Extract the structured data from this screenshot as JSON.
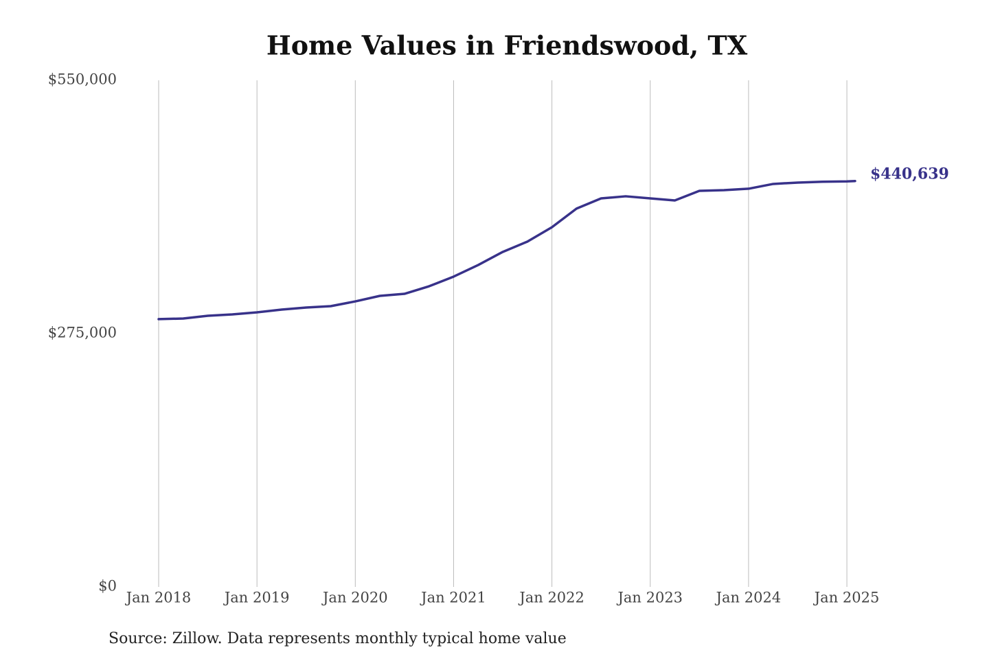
{
  "chart_data": {
    "type": "line",
    "title": "Home Values in Friendswood, TX",
    "note": "Source: Zillow. Data represents monthly typical home value",
    "x": [
      "2018-01",
      "2018-04",
      "2018-07",
      "2018-10",
      "2019-01",
      "2019-04",
      "2019-07",
      "2019-10",
      "2020-01",
      "2020-04",
      "2020-07",
      "2020-10",
      "2021-01",
      "2021-04",
      "2021-07",
      "2021-10",
      "2022-01",
      "2022-04",
      "2022-07",
      "2022-10",
      "2023-01",
      "2023-04",
      "2023-07",
      "2023-10",
      "2024-01",
      "2024-04",
      "2024-07",
      "2024-10",
      "2025-01",
      "2025-02"
    ],
    "series": [
      {
        "name": "Typical home value",
        "color": "#38328a",
        "values": [
          290700,
          291400,
          294400,
          295900,
          298100,
          301100,
          303300,
          304800,
          310000,
          316000,
          318200,
          326400,
          336900,
          349500,
          363700,
          374900,
          390500,
          410700,
          421800,
          424100,
          421800,
          419600,
          430000,
          430800,
          432300,
          437500,
          439000,
          439900,
          440300,
          440639
        ],
        "value_labels": [
          null,
          null,
          null,
          null,
          null,
          null,
          null,
          null,
          null,
          null,
          null,
          null,
          null,
          null,
          null,
          null,
          null,
          null,
          null,
          null,
          null,
          null,
          null,
          null,
          null,
          null,
          null,
          null,
          null,
          "$440,639"
        ]
      }
    ],
    "xlim": [
      "2018-01",
      "2025-02"
    ],
    "xticks": [
      {
        "value": "2018-01",
        "label": "Jan 2018"
      },
      {
        "value": "2019-01",
        "label": "Jan 2019"
      },
      {
        "value": "2020-01",
        "label": "Jan 2020"
      },
      {
        "value": "2021-01",
        "label": "Jan 2021"
      },
      {
        "value": "2022-01",
        "label": "Jan 2022"
      },
      {
        "value": "2023-01",
        "label": "Jan 2023"
      },
      {
        "value": "2024-01",
        "label": "Jan 2024"
      },
      {
        "value": "2025-01",
        "label": "Jan 2025"
      }
    ],
    "ylim": [
      0,
      550000
    ],
    "yticks": [
      {
        "value": 0,
        "label": "$0"
      },
      {
        "value": 275000,
        "label": "$275,000"
      },
      {
        "value": 550000,
        "label": "$550,000"
      }
    ],
    "grid": "x"
  }
}
